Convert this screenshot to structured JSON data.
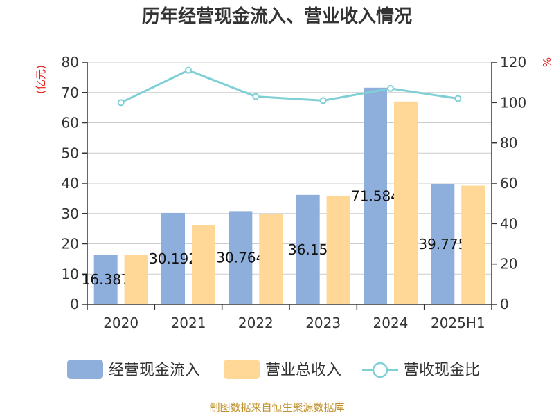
{
  "chart_data": {
    "type": "bar",
    "title": "历年经营现金流入、营业收入情况",
    "categories": [
      "2020",
      "2021",
      "2022",
      "2023",
      "2024",
      "2025H1"
    ],
    "left_axis": {
      "unit_label": "(亿元)",
      "ylim": [
        0,
        80
      ],
      "ticks": [
        "0",
        "10",
        "20",
        "30",
        "40",
        "50",
        "60",
        "70",
        "80"
      ]
    },
    "right_axis": {
      "unit_label": "%",
      "ylim": [
        0,
        120
      ],
      "ticks": [
        "0",
        "20",
        "40",
        "60",
        "80",
        "100",
        "120"
      ]
    },
    "grid": true,
    "legend_position": "bottom",
    "series": [
      {
        "name": "经营现金流入",
        "kind": "bar",
        "axis": "left",
        "color": "#8eaedc",
        "values": [
          16.387,
          30.192,
          30.764,
          36.15,
          71.584,
          39.775
        ]
      },
      {
        "name": "营业总收入",
        "kind": "bar",
        "axis": "left",
        "color": "#ffd898",
        "values": [
          16.4,
          26.1,
          29.9,
          35.9,
          67.0,
          39.2
        ]
      },
      {
        "name": "营收现金比",
        "kind": "line",
        "axis": "right",
        "color": "#7fd0d6",
        "values": [
          100,
          116,
          103,
          101,
          107,
          102
        ]
      }
    ],
    "data_labels": [
      "16.387",
      "30.192",
      "30.764",
      "36.15",
      "71.584",
      "39.775"
    ]
  },
  "source_note": "制图数据来自恒生聚源数据库"
}
